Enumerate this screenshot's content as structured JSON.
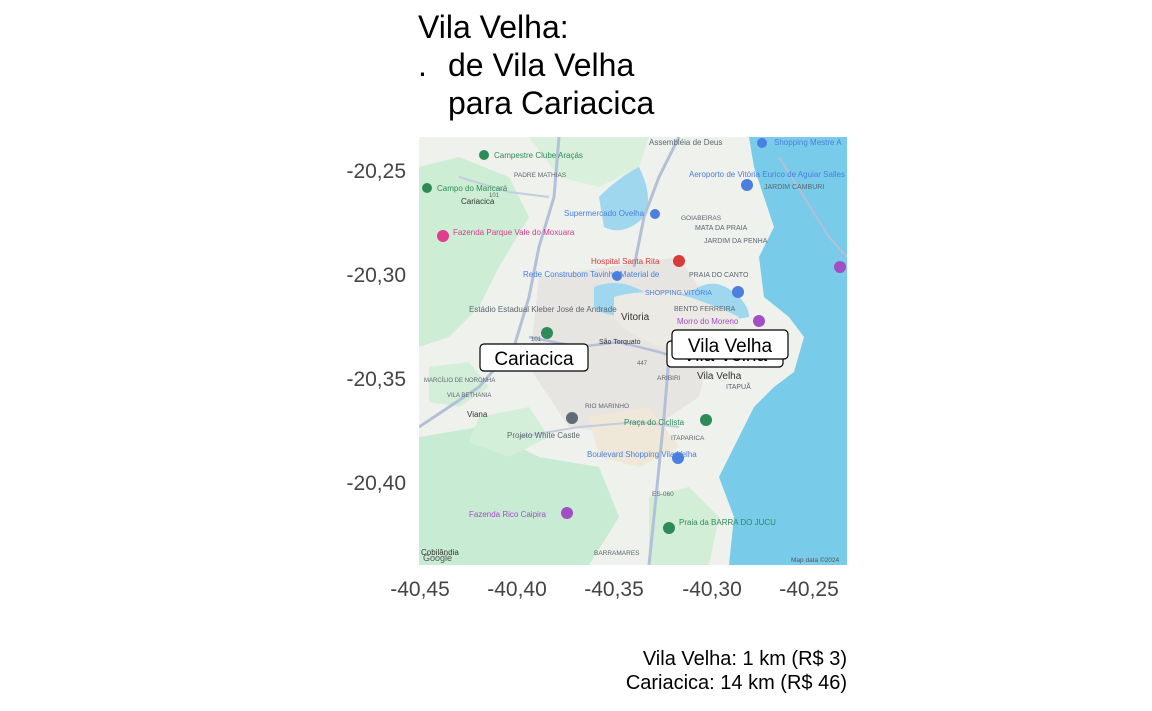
{
  "title": {
    "line1": "Vila Velha:",
    "bullet": ".",
    "line2": "de Vila Velha",
    "line3": "para Cariacica"
  },
  "axes": {
    "y_ticks": [
      "-20,25",
      "-20,30",
      "-20,35",
      "-20,40"
    ],
    "x_ticks": [
      "-40,45",
      "-40,40",
      "-40,35",
      "-40,30",
      "-40,25"
    ]
  },
  "map": {
    "labels": {
      "cariacica_box": "Cariacica",
      "vila_velha_box": "Vila Velha",
      "vila_velha_box_shadow": "Vila Velha"
    },
    "places": {
      "assembleia": "Assembléia de Deus",
      "shopping_mestre": "Shopping Mestre A",
      "campestre": "Campestre Clube Araçás",
      "padre_mathias": "PADRE MATHIAS",
      "campo_maricara": "Campo do Maricará",
      "cariacica": "Cariacica",
      "aeroporto": "Aeroporto de Vitória Eurico de Aguiar Salles",
      "jardim_camburi": "JARDIM CAMBURI",
      "supermercado": "Supermercado Ovelha",
      "goiabeiras": "GOIABEIRAS",
      "mata_da_praia": "MATA DA PRAIA",
      "jardim_da_penha": "JARDIM DA PENHA",
      "fazenda_parque": "Fazenda Parque Vale do Moxuara",
      "hospital": "Hospital Santa Rita",
      "praia_do_canto": "PRAIA DO CANTO",
      "rede_construbom": "Rede Construbom Tavinho Material de",
      "shopping_vitoria": "SHOPPING VITÓRIA",
      "bento_ferreira": "BENTO FERREIRA",
      "estadio": "Estádio Estadual Kleber José de Andrade",
      "vitoria": "Vitoria",
      "morro_moreno": "Morro do Moreno",
      "sao_torquato": "São Torquato",
      "aribiri": "ARIBIRI",
      "vila_velha": "Vila Velha",
      "itapua": "ITAPUÃ",
      "marcilio": "MARCÍLIO DE NORONHA",
      "vila_bethania": "VILA BETHANIA",
      "viana": "Viana",
      "rio_marinho": "RIO MARINHO",
      "praca_ciclista": "Praça do Ciclista",
      "projeto_white": "Projeto White Castle",
      "itaparica": "ITAPARICA",
      "boulevard": "Boulevard Shopping Vila Velha",
      "es060": "ES-060",
      "fazenda_rico": "Fazenda Rico Caipira",
      "praia_barra": "Praia da BARRA DO JUCU",
      "barramares": "BARRAMARES",
      "cobilandia": "Cobilândia",
      "google": "Google",
      "map_data": "Map data ©2024",
      "road_101": "101",
      "road_447": "447"
    },
    "colors": {
      "sea": "#78cbe9",
      "land": "#eef1ec",
      "green": "#c8ebd3",
      "urban": "#e8e6e1",
      "road": "#b9c4d8"
    }
  },
  "caption": {
    "line1": "Vila Velha: 1 km (R$ 3)",
    "line2": "Cariacica: 14 km (R$ 46)"
  }
}
